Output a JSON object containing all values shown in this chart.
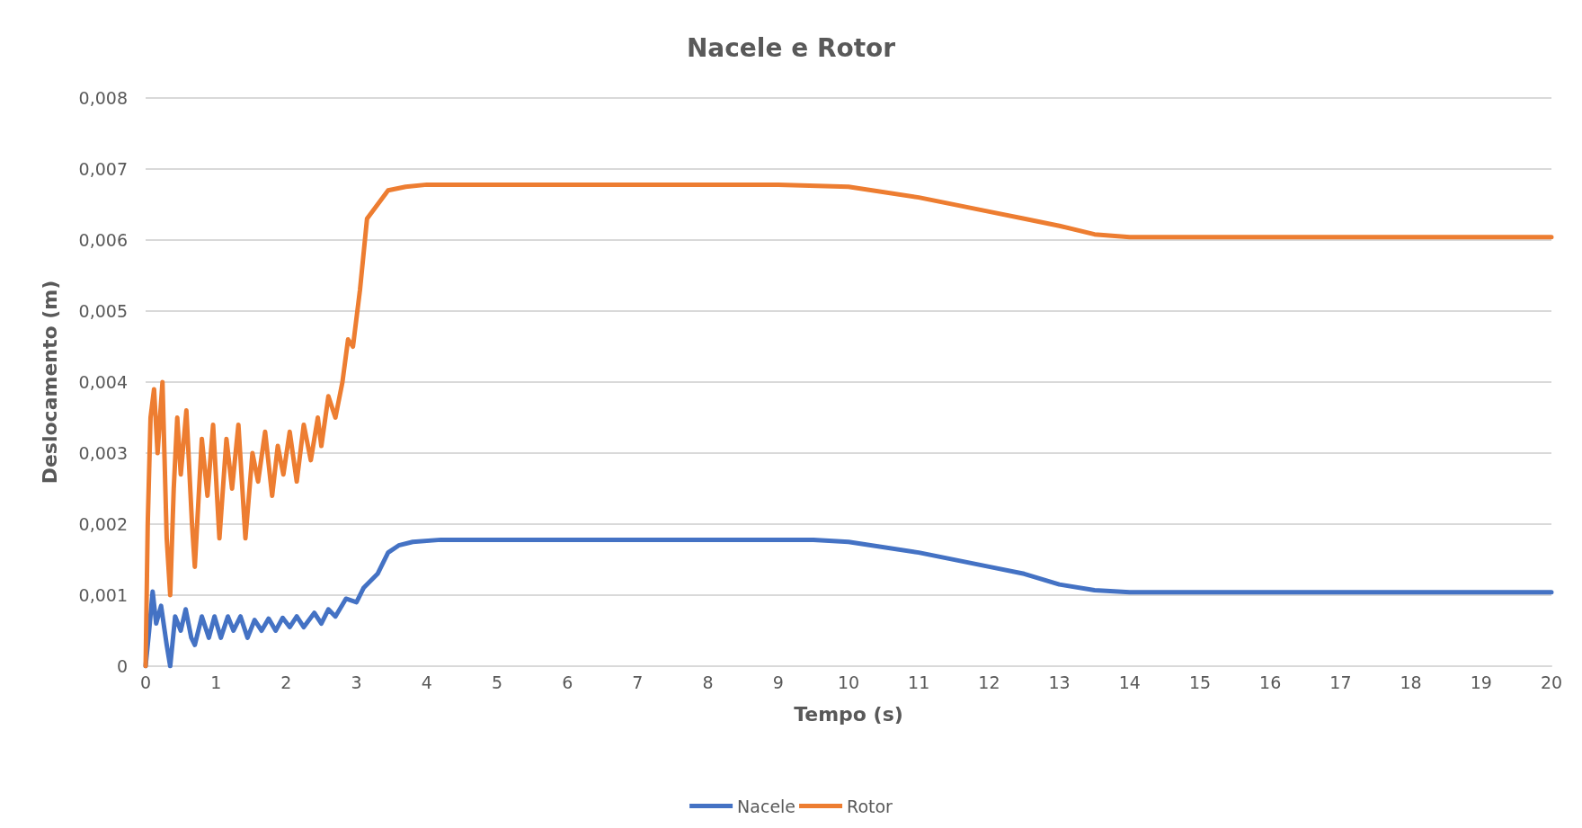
{
  "chart_data": {
    "type": "line",
    "title": "Nacele e Rotor",
    "xlabel": "Tempo (s)",
    "ylabel": "Deslocamento (m)",
    "xlim": [
      0,
      20
    ],
    "xticks": [
      0,
      1,
      2,
      3,
      4,
      5,
      6,
      7,
      8,
      9,
      10,
      11,
      12,
      13,
      14,
      15,
      16,
      17,
      18,
      19,
      20
    ],
    "ylim": [
      0,
      0.008
    ],
    "yticks": [
      0,
      {
        "value": 0.001,
        "label": "0,001"
      },
      {
        "value": 0.002,
        "label": "0,002"
      },
      {
        "value": 0.003,
        "label": "0,003"
      },
      {
        "value": 0.004,
        "label": "0,004"
      },
      {
        "value": 0.005,
        "label": "0,005"
      },
      {
        "value": 0.006,
        "label": "0,006"
      },
      {
        "value": 0.007,
        "label": "0,007"
      },
      {
        "value": 0.008,
        "label": "0,008"
      }
    ],
    "grid": "y",
    "legend": "bottom",
    "marker": "none",
    "line_style": "solid",
    "series": [
      {
        "name": "Nacele",
        "color": "#4472c4",
        "x": [
          0,
          0.05,
          0.1,
          0.15,
          0.22,
          0.3,
          0.35,
          0.42,
          0.5,
          0.57,
          0.65,
          0.7,
          0.8,
          0.9,
          0.98,
          1.07,
          1.17,
          1.25,
          1.35,
          1.45,
          1.55,
          1.65,
          1.75,
          1.85,
          1.95,
          2.05,
          2.15,
          2.25,
          2.4,
          2.5,
          2.6,
          2.7,
          2.85,
          3,
          3.1,
          3.3,
          3.45,
          3.6,
          3.8,
          4.2,
          5,
          9.5,
          10,
          11,
          12,
          12.5,
          13,
          13.5,
          14,
          20
        ],
        "values": [
          0,
          0.0005,
          0.00105,
          0.0006,
          0.00085,
          0.0003,
          0,
          0.0007,
          0.0005,
          0.0008,
          0.0004,
          0.0003,
          0.0007,
          0.0004,
          0.0007,
          0.0004,
          0.0007,
          0.0005,
          0.0007,
          0.0004,
          0.00065,
          0.0005,
          0.00067,
          0.0005,
          0.00068,
          0.00055,
          0.0007,
          0.00055,
          0.00075,
          0.0006,
          0.0008,
          0.0007,
          0.00095,
          0.0009,
          0.0011,
          0.0013,
          0.0016,
          0.0017,
          0.00175,
          0.00178,
          0.00178,
          0.00178,
          0.00175,
          0.0016,
          0.0014,
          0.0013,
          0.00115,
          0.00107,
          0.00104,
          0.00104
        ]
      },
      {
        "name": "Rotor",
        "color": "#ed7d31",
        "x": [
          0,
          0.03,
          0.07,
          0.12,
          0.17,
          0.24,
          0.3,
          0.35,
          0.4,
          0.45,
          0.5,
          0.58,
          0.66,
          0.7,
          0.8,
          0.88,
          0.96,
          1.05,
          1.15,
          1.23,
          1.32,
          1.42,
          1.52,
          1.6,
          1.7,
          1.8,
          1.88,
          1.96,
          2.05,
          2.15,
          2.25,
          2.35,
          2.45,
          2.5,
          2.6,
          2.7,
          2.8,
          2.88,
          2.95,
          3.05,
          3.15,
          3.3,
          3.45,
          3.7,
          4,
          5,
          9,
          10,
          11,
          12,
          12.5,
          13,
          13.5,
          14,
          20
        ],
        "values": [
          0,
          0.002,
          0.0035,
          0.0039,
          0.003,
          0.004,
          0.0018,
          0.001,
          0.0025,
          0.0035,
          0.0027,
          0.0036,
          0.002,
          0.0014,
          0.0032,
          0.0024,
          0.0034,
          0.0018,
          0.0032,
          0.0025,
          0.0034,
          0.0018,
          0.003,
          0.0026,
          0.0033,
          0.0024,
          0.0031,
          0.0027,
          0.0033,
          0.0026,
          0.0034,
          0.0029,
          0.0035,
          0.0031,
          0.0038,
          0.0035,
          0.004,
          0.0046,
          0.0045,
          0.0053,
          0.0063,
          0.0065,
          0.0067,
          0.00675,
          0.00678,
          0.00678,
          0.00678,
          0.00675,
          0.0066,
          0.0064,
          0.0063,
          0.0062,
          0.00608,
          0.00604,
          0.00604
        ]
      }
    ]
  }
}
